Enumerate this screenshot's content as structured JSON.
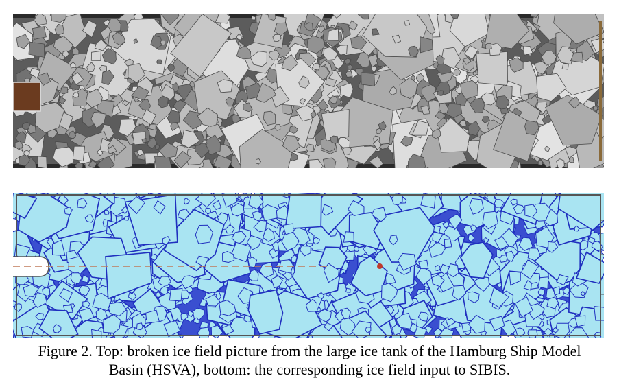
{
  "figure": {
    "caption_line_1": "Figure 2. Top: broken ice field picture from the large ice tank of the Hamburg Ship Model",
    "caption_line_2": "Basin (HSVA), bottom: the corresponding ice field input to SIBIS."
  },
  "colors": {
    "tank_dark": "#2b2b2b",
    "ice_photo_light": "#d9d9d9",
    "ice_photo_mid": "#9a9a9a",
    "sim_ice_fill": "#a9e4f2",
    "sim_ice_edge": "#1f2fbf",
    "sim_background": "#ffffff",
    "channel_line": "#c07a5a",
    "marker": "#c0392b"
  }
}
